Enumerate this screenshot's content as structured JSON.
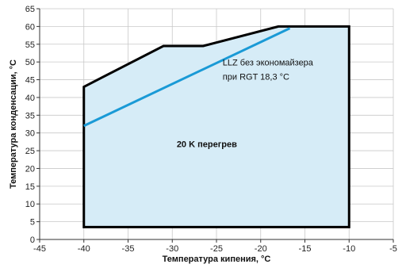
{
  "chart_data": {
    "type": "area",
    "title": "",
    "xlabel": "Температура кипения, °C",
    "ylabel": "Температура конденсации, °C",
    "xlim": [
      -45,
      -5
    ],
    "ylim": [
      0,
      65
    ],
    "x_ticks": [
      -45,
      -40,
      -35,
      -30,
      -25,
      -20,
      -15,
      -10,
      -5
    ],
    "y_ticks": [
      0,
      5,
      10,
      15,
      20,
      25,
      30,
      35,
      40,
      45,
      50,
      55,
      60,
      65
    ],
    "x_tick_labels": [
      "-45",
      "-40",
      "-35",
      "-30",
      "-25",
      "-20",
      "-15",
      "-10",
      "-5"
    ],
    "y_tick_labels": [
      "0",
      "5",
      "10",
      "15",
      "20",
      "25",
      "30",
      "35",
      "40",
      "45",
      "50",
      "55",
      "60",
      "65"
    ],
    "grid": true,
    "envelope": {
      "x": [
        -40,
        -40,
        -31,
        -26.5,
        -18,
        -10,
        -10,
        -40
      ],
      "y": [
        3.5,
        43,
        54.5,
        54.5,
        60,
        60,
        3.5,
        3.5
      ],
      "fill_color": "#d6ecf7",
      "stroke_color": "#000000"
    },
    "series": [
      {
        "x": [
          -40,
          -16.7
        ],
        "y": [
          32,
          59.5
        ],
        "color": "#1a9ad6"
      }
    ],
    "annotations": [
      {
        "text": "LLZ без экономайзера",
        "x": -24.3,
        "y": 49,
        "weight": "normal"
      },
      {
        "text": "при RGT 18,3 °C",
        "x": -24.3,
        "y": 45,
        "weight": "normal"
      },
      {
        "text": "20 K перегрев",
        "x": -29.5,
        "y": 26,
        "weight": "bold"
      }
    ]
  }
}
